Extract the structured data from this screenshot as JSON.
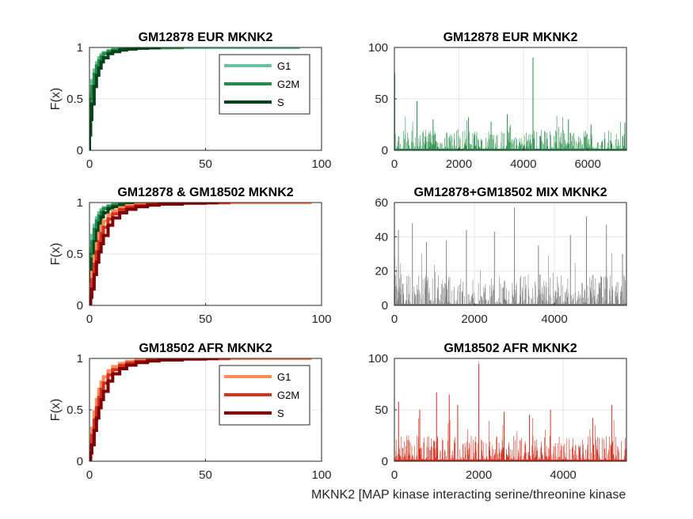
{
  "figure": {
    "xlabel": "MKNK2 [MAP kinase interacting serine/threonine kinase"
  },
  "chart_data": [
    {
      "type": "line",
      "subtype": "ecdf",
      "title": "GM12878 EUR MKNK2",
      "ylabel": "F(x)",
      "xlim": [
        0,
        100
      ],
      "ylim": [
        0,
        1
      ],
      "xticks": [
        "0",
        "50",
        "100"
      ],
      "yticks": [
        "0",
        "0.5",
        "1"
      ],
      "grid": true,
      "legend_position": "top-right",
      "series": [
        {
          "name": "G1",
          "color": "#66c2a4",
          "x": [
            0,
            0.5,
            1,
            2,
            3,
            4,
            5,
            6,
            8,
            10,
            13,
            16,
            20,
            25,
            30,
            35,
            40,
            50,
            60,
            75,
            90
          ],
          "y": [
            0.35,
            0.55,
            0.68,
            0.78,
            0.85,
            0.9,
            0.93,
            0.95,
            0.97,
            0.98,
            0.985,
            0.99,
            0.993,
            0.995,
            0.997,
            0.998,
            0.999,
            0.9995,
            0.9997,
            0.9999,
            1.0
          ]
        },
        {
          "name": "G2M",
          "color": "#238b45",
          "x": [
            0,
            0.5,
            1,
            2,
            3,
            4,
            5,
            6,
            8,
            10,
            13,
            16,
            20,
            25,
            30,
            35,
            40
          ],
          "y": [
            0.3,
            0.5,
            0.62,
            0.74,
            0.82,
            0.87,
            0.91,
            0.94,
            0.96,
            0.975,
            0.985,
            0.99,
            0.994,
            0.997,
            0.998,
            0.999,
            1.0
          ]
        },
        {
          "name": "S",
          "color": "#00441b",
          "x": [
            0,
            0.5,
            1,
            2,
            3,
            4,
            5,
            6,
            8,
            10,
            13,
            16,
            20,
            25,
            30
          ],
          "y": [
            0.15,
            0.3,
            0.45,
            0.62,
            0.73,
            0.8,
            0.86,
            0.9,
            0.94,
            0.96,
            0.975,
            0.985,
            0.993,
            0.997,
            1.0
          ]
        }
      ]
    },
    {
      "type": "bar",
      "title": "GM12878 EUR MKNK2",
      "xlim": [
        0,
        7200
      ],
      "ylim": [
        0,
        100
      ],
      "xticks": [
        "0",
        "2000",
        "4000",
        "6000"
      ],
      "yticks": [
        "0",
        "50",
        "100"
      ],
      "grid": true,
      "color": "#238b45",
      "n_cells": 7200,
      "peaks": [
        {
          "x": 10,
          "y": 75
        },
        {
          "x": 700,
          "y": 48
        },
        {
          "x": 1200,
          "y": 30
        },
        {
          "x": 2300,
          "y": 32
        },
        {
          "x": 3000,
          "y": 28
        },
        {
          "x": 3500,
          "y": 35
        },
        {
          "x": 4300,
          "y": 90
        },
        {
          "x": 5400,
          "y": 30
        },
        {
          "x": 6100,
          "y": 25
        },
        {
          "x": 7150,
          "y": 27
        }
      ],
      "baseline_max": 20
    },
    {
      "type": "line",
      "subtype": "ecdf",
      "title": "GM12878 & GM18502 MKNK2",
      "ylabel": "F(x)",
      "xlim": [
        0,
        100
      ],
      "ylim": [
        0,
        1
      ],
      "xticks": [
        "0",
        "50",
        "100"
      ],
      "yticks": [
        "0",
        "0.5",
        "1"
      ],
      "grid": true,
      "series": [
        {
          "color": "#66c2a4",
          "x": [
            0,
            0.5,
            1,
            2,
            3,
            4,
            5,
            6,
            8,
            10,
            13,
            16,
            20,
            25,
            30,
            40
          ],
          "y": [
            0.35,
            0.55,
            0.68,
            0.78,
            0.85,
            0.9,
            0.93,
            0.95,
            0.97,
            0.98,
            0.985,
            0.99,
            0.994,
            0.997,
            0.999,
            1.0
          ]
        },
        {
          "color": "#238b45",
          "x": [
            0,
            0.5,
            1,
            2,
            3,
            4,
            5,
            6,
            8,
            10,
            13,
            16,
            20,
            25,
            30,
            40
          ],
          "y": [
            0.3,
            0.5,
            0.62,
            0.74,
            0.82,
            0.87,
            0.91,
            0.94,
            0.96,
            0.975,
            0.985,
            0.99,
            0.994,
            0.997,
            0.998,
            1.0
          ]
        },
        {
          "color": "#00441b",
          "x": [
            0,
            0.5,
            1,
            2,
            3,
            4,
            5,
            6,
            8,
            10,
            13,
            16,
            20,
            25,
            30
          ],
          "y": [
            0.15,
            0.3,
            0.45,
            0.62,
            0.73,
            0.8,
            0.86,
            0.9,
            0.94,
            0.96,
            0.975,
            0.985,
            0.993,
            0.997,
            1.0
          ]
        },
        {
          "color": "#fc8d59",
          "x": [
            0,
            0.5,
            1,
            2,
            3,
            4,
            5,
            6,
            8,
            10,
            13,
            16,
            20,
            25,
            30,
            40,
            50,
            60,
            75,
            95
          ],
          "y": [
            0.08,
            0.2,
            0.32,
            0.48,
            0.6,
            0.7,
            0.77,
            0.82,
            0.88,
            0.92,
            0.95,
            0.97,
            0.98,
            0.988,
            0.993,
            0.996,
            0.998,
            0.999,
            0.9995,
            1.0
          ]
        },
        {
          "color": "#d7301f",
          "x": [
            0,
            0.5,
            1,
            2,
            3,
            4,
            5,
            6,
            8,
            10,
            13,
            16,
            20,
            25,
            30,
            40,
            50,
            60
          ],
          "y": [
            0.05,
            0.15,
            0.25,
            0.4,
            0.52,
            0.62,
            0.7,
            0.76,
            0.84,
            0.89,
            0.93,
            0.955,
            0.97,
            0.98,
            0.988,
            0.995,
            0.998,
            1.0
          ]
        },
        {
          "color": "#7f0000",
          "x": [
            0,
            0.5,
            1,
            2,
            3,
            4,
            5,
            6,
            8,
            10,
            13,
            16,
            20,
            25,
            30,
            40,
            50,
            55
          ],
          "y": [
            0.02,
            0.08,
            0.16,
            0.3,
            0.42,
            0.52,
            0.6,
            0.68,
            0.78,
            0.85,
            0.9,
            0.935,
            0.96,
            0.975,
            0.985,
            0.994,
            0.998,
            1.0
          ]
        }
      ]
    },
    {
      "type": "bar",
      "title": "GM12878+GM18502 MIX MKNK2",
      "xlim": [
        0,
        5800
      ],
      "ylim": [
        0,
        60
      ],
      "xticks": [
        "0",
        "2000",
        "4000"
      ],
      "yticks": [
        "0",
        "20",
        "40",
        "60"
      ],
      "grid": true,
      "color": "#808080",
      "n_cells": 5800,
      "peaks": [
        {
          "x": 100,
          "y": 44
        },
        {
          "x": 450,
          "y": 48
        },
        {
          "x": 800,
          "y": 37
        },
        {
          "x": 1300,
          "y": 38
        },
        {
          "x": 1800,
          "y": 44
        },
        {
          "x": 2500,
          "y": 43
        },
        {
          "x": 3000,
          "y": 57
        },
        {
          "x": 3600,
          "y": 35
        },
        {
          "x": 4400,
          "y": 41
        },
        {
          "x": 4800,
          "y": 52
        },
        {
          "x": 5300,
          "y": 47
        },
        {
          "x": 5700,
          "y": 30
        }
      ],
      "baseline_max": 18
    },
    {
      "type": "line",
      "subtype": "ecdf",
      "title": "GM18502 AFR MKNK2",
      "ylabel": "F(x)",
      "xlim": [
        0,
        100
      ],
      "ylim": [
        0,
        1
      ],
      "xticks": [
        "0",
        "50",
        "100"
      ],
      "yticks": [
        "0",
        "0.5",
        "1"
      ],
      "grid": true,
      "legend_position": "top-right",
      "series": [
        {
          "name": "G1",
          "color": "#fc8d59",
          "x": [
            0,
            0.5,
            1,
            2,
            3,
            4,
            5,
            6,
            8,
            10,
            13,
            16,
            20,
            25,
            30,
            40,
            50,
            60,
            75,
            95
          ],
          "y": [
            0.08,
            0.2,
            0.32,
            0.48,
            0.6,
            0.7,
            0.77,
            0.82,
            0.88,
            0.92,
            0.95,
            0.97,
            0.98,
            0.988,
            0.993,
            0.996,
            0.998,
            0.999,
            0.9995,
            1.0
          ]
        },
        {
          "name": "G2M",
          "color": "#d7301f",
          "x": [
            0,
            0.5,
            1,
            2,
            3,
            4,
            5,
            6,
            8,
            10,
            13,
            16,
            20,
            25,
            30,
            40,
            50,
            60
          ],
          "y": [
            0.05,
            0.15,
            0.25,
            0.4,
            0.52,
            0.62,
            0.7,
            0.76,
            0.84,
            0.89,
            0.93,
            0.955,
            0.97,
            0.98,
            0.988,
            0.995,
            0.998,
            1.0
          ]
        },
        {
          "name": "S",
          "color": "#7f0000",
          "x": [
            0,
            0.5,
            1,
            2,
            3,
            4,
            5,
            6,
            8,
            10,
            13,
            16,
            20,
            25,
            30,
            40,
            50,
            55
          ],
          "y": [
            0.02,
            0.08,
            0.16,
            0.3,
            0.42,
            0.52,
            0.6,
            0.68,
            0.78,
            0.85,
            0.9,
            0.935,
            0.96,
            0.975,
            0.985,
            0.994,
            0.998,
            1.0
          ]
        }
      ]
    },
    {
      "type": "bar",
      "title": "GM18502 AFR MKNK2",
      "xlim": [
        0,
        5500
      ],
      "ylim": [
        0,
        100
      ],
      "xticks": [
        "0",
        "2000",
        "4000"
      ],
      "yticks": [
        "0",
        "50",
        "100"
      ],
      "grid": true,
      "color": "#d7301f",
      "n_cells": 5500,
      "peaks": [
        {
          "x": 100,
          "y": 58
        },
        {
          "x": 600,
          "y": 50
        },
        {
          "x": 1000,
          "y": 67
        },
        {
          "x": 1300,
          "y": 65
        },
        {
          "x": 1500,
          "y": 55
        },
        {
          "x": 2000,
          "y": 95
        },
        {
          "x": 2600,
          "y": 48
        },
        {
          "x": 3200,
          "y": 45
        },
        {
          "x": 3700,
          "y": 50
        },
        {
          "x": 4700,
          "y": 42
        },
        {
          "x": 5150,
          "y": 55
        }
      ],
      "baseline_max": 25
    }
  ]
}
